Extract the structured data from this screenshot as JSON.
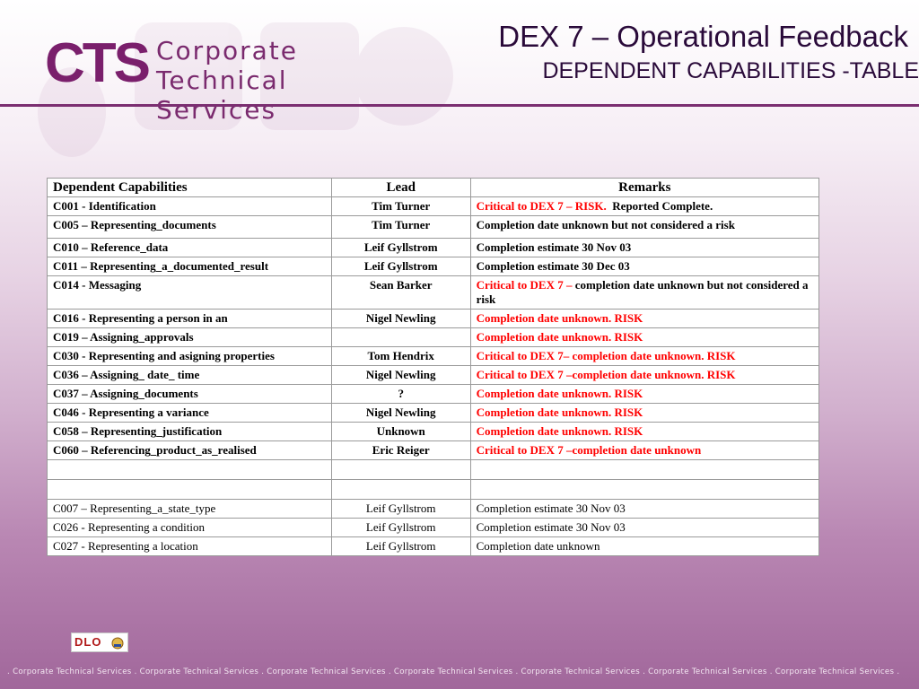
{
  "header": {
    "logo_mark": "CTS",
    "logo_line1": "Corporate",
    "logo_line2": "Technical Services",
    "title": "DEX 7 – Operational Feedback",
    "subtitle": "DEPENDENT CAPABILITIES -TABLE"
  },
  "table": {
    "headers": [
      "Dependent Capabilities",
      "Lead",
      "Remarks"
    ],
    "rows": [
      {
        "cap": "C001 - Identification",
        "lead": "Tim Turner",
        "remark_red": "Critical to DEX 7 – RISK.",
        "remark": "Reported  Complete."
      },
      {
        "cap": "C005 – Representing_documents",
        "lead": "Tim Turner",
        "remark_red": "",
        "remark": "Completion date unknown  but not considered a risk"
      },
      {
        "cap": "C010 – Reference_data",
        "lead": "Leif Gyllstrom",
        "remark_red": "",
        "remark": "Completion estimate 30 Nov 03"
      },
      {
        "cap": "C011 – Representing_a_documented_result",
        "lead": "Leif Gyllstrom",
        "remark_red": "",
        "remark": "Completion estimate 30 Dec 03"
      },
      {
        "cap": "C014 - Messaging",
        "lead": "Sean Barker",
        "remark_red": "Critical to DEX 7 –",
        "remark": "completion date unknown but not considered a risk"
      },
      {
        "cap": "C016 - Representing a person in an",
        "lead": "Nigel Newling",
        "remark_red": "Completion date unknown.  RISK",
        "remark": ""
      },
      {
        "cap": "C019 – Assigning_approvals",
        "lead": "",
        "remark_red": "Completion date unknown.  RISK",
        "remark": ""
      },
      {
        "cap": "C030 - Representing and asigning properties",
        "lead": "Tom Hendrix",
        "remark_red": "Critical to DEX 7– completion date unknown.  RISK",
        "remark": ""
      },
      {
        "cap": "C036 – Assigning_ date_ time",
        "lead": "Nigel Newling",
        "remark_red": "Critical to DEX 7 –completion date unknown.  RISK",
        "remark": ""
      },
      {
        "cap": "C037 – Assigning_documents",
        "lead": "?",
        "remark_red": "Completion date unknown.  RISK",
        "remark": ""
      },
      {
        "cap": "C046 - Representing a variance",
        "lead": "Nigel Newling",
        "remark_red": "Completion date unknown.  RISK",
        "remark": ""
      },
      {
        "cap": "C058 – Representing_justification",
        "lead": "Unknown",
        "remark_red": "Completion date unknown.  RISK",
        "remark": ""
      },
      {
        "cap": "C060 – Referencing_product_as_realised",
        "lead": "Eric Reiger",
        "remark_red": "Critical to DEX 7 –completion date unknown",
        "remark": ""
      }
    ],
    "rows_plain": [
      {
        "cap": "C007 – Representing_a_state_type",
        "lead": "Leif Gyllstrom",
        "remark": "Completion estimate 30 Nov 03"
      },
      {
        "cap": "C026 - Representing a condition",
        "lead": "Leif Gyllstrom",
        "remark": "Completion estimate 30 Nov 03"
      },
      {
        "cap": "C027 - Representing a location",
        "lead": "Leif Gyllstrom",
        "remark": "Completion date unknown"
      }
    ]
  },
  "dlo_logo": "DLO",
  "footer": ". Corporate Technical Services . Corporate Technical Services . Corporate Technical Services . Corporate Technical Services . Corporate Technical Services . Corporate Technical Services . Corporate Technical Services .",
  "colors": {
    "accent": "#7b2e71",
    "risk": "#ff0000"
  }
}
